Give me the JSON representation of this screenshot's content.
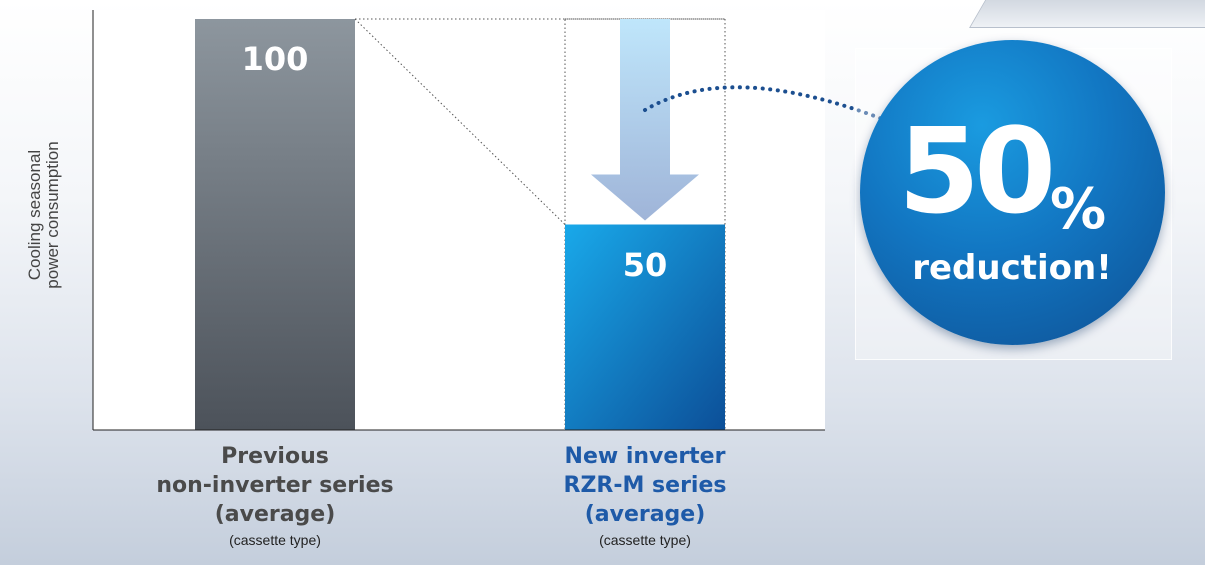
{
  "chart_data": {
    "type": "bar",
    "ylabel_lines": [
      "Cooling seasonal",
      "power consumption"
    ],
    "ylim": [
      0,
      100
    ],
    "grid": false,
    "categories": [
      {
        "label_lines": [
          "Previous",
          "non-inverter series",
          "(average)"
        ],
        "sub": "(cassette type)",
        "value": 100,
        "value_label": "100",
        "color": "#6b727a"
      },
      {
        "label_lines": [
          "New inverter",
          "RZR-M series",
          "(average)"
        ],
        "sub": "(cassette type)",
        "value": 50,
        "value_label": "50",
        "color": "#1380c8"
      }
    ]
  },
  "badge": {
    "number": "50",
    "percent": "%",
    "text": "reduction!",
    "color": "#1276c2"
  },
  "colors": {
    "previous_bar": "#6b727a",
    "new_bar": "#1380c8",
    "arrow": "#a9c4e6",
    "new_label": "#1e5aa8"
  }
}
